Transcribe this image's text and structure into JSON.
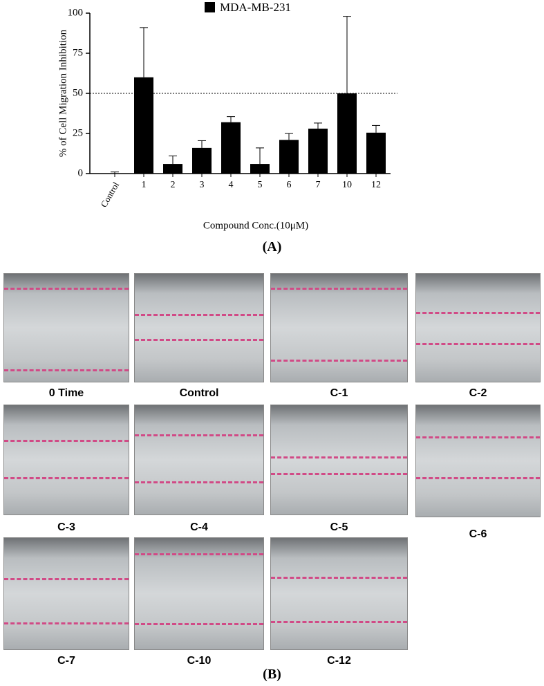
{
  "chart_data": {
    "type": "bar",
    "ylabel": "% of Cell Migration Inhibition",
    "xlabel": "Compound Conc.(10μM)",
    "categories": [
      "Control",
      "1",
      "2",
      "3",
      "4",
      "5",
      "6",
      "7",
      "10",
      "12"
    ],
    "series": [
      {
        "name": "MDA-MB-231",
        "color": "#000000",
        "values": [
          0,
          60,
          6,
          16,
          32,
          6,
          21,
          28,
          50,
          25.5
        ],
        "errors": [
          1,
          31,
          5,
          4.5,
          3.5,
          10,
          4,
          3.5,
          48,
          4.5
        ]
      }
    ],
    "hline": 50,
    "ylim": [
      0,
      100
    ],
    "yticks": [
      0,
      25,
      50,
      75,
      100
    ]
  },
  "panel_a_label": "(A)",
  "panel_b_label": "(B)",
  "images": [
    {
      "label": "0 Time"
    },
    {
      "label": "Control"
    },
    {
      "label": "C-1"
    },
    {
      "label": "C-2"
    },
    {
      "label": "C-3"
    },
    {
      "label": "C-4"
    },
    {
      "label": "C-5"
    },
    {
      "label": "C-6"
    },
    {
      "label": "C-7"
    },
    {
      "label": "C-10"
    },
    {
      "label": "C-12"
    }
  ]
}
